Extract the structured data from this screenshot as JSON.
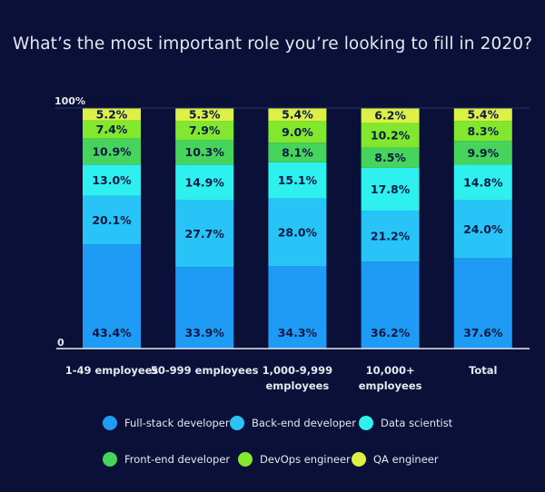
{
  "chart_data": {
    "type": "bar",
    "stacked": true,
    "title": "What’s the most important role you’re looking to fill in 2020?",
    "xlabel": "",
    "ylabel": "",
    "ylim": [
      0,
      100
    ],
    "y_ticks": [
      "0",
      "100%"
    ],
    "categories": [
      [
        "1-49 employees"
      ],
      [
        "50-999 employees"
      ],
      [
        "1,000-9,999",
        "employees"
      ],
      [
        "10,000+",
        "employees"
      ],
      [
        "Total"
      ]
    ],
    "category_names": [
      "1-49 employees",
      "50-999 employees",
      "1,000-9,999 employees",
      "10,000+ employees",
      "Total"
    ],
    "series": [
      {
        "name": "Full-stack developer",
        "color": "#1e9bf5",
        "values": [
          43.4,
          33.9,
          34.3,
          36.2,
          37.6
        ]
      },
      {
        "name": "Back-end developer",
        "color": "#28c3f7",
        "values": [
          20.1,
          27.7,
          28.0,
          21.2,
          24.0
        ]
      },
      {
        "name": "Data scientist",
        "color": "#2ef0ee",
        "values": [
          13.0,
          14.9,
          15.1,
          17.8,
          14.8
        ]
      },
      {
        "name": "Front-end developer",
        "color": "#46d45c",
        "values": [
          10.9,
          10.3,
          8.1,
          8.5,
          9.9
        ]
      },
      {
        "name": "DevOps engineer",
        "color": "#82e82e",
        "values": [
          7.4,
          7.9,
          9.0,
          10.2,
          8.3
        ]
      },
      {
        "name": "QA engineer",
        "color": "#dcf046",
        "values": [
          5.2,
          5.3,
          5.4,
          6.2,
          5.4
        ]
      }
    ],
    "legend_position": "bottom",
    "grid": false
  }
}
